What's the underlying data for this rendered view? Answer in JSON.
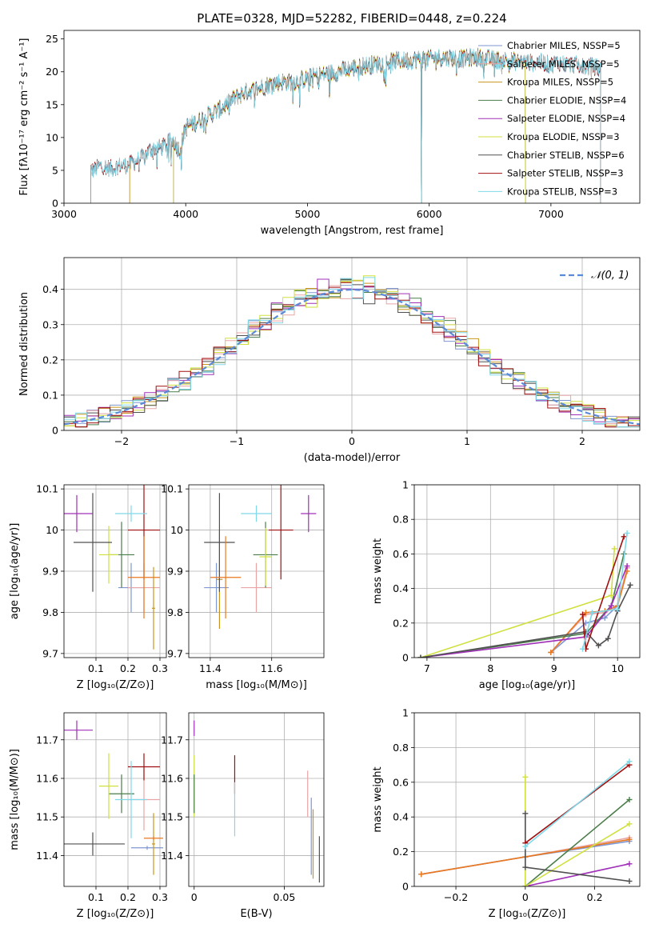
{
  "figure_title": "PLATE=0328, MJD=52282, FIBERID=0448, z=0.224",
  "colors": [
    "#7f96d0",
    "#e8a5a5",
    "#c8961e",
    "#4a7d4a",
    "#a030b8",
    "#d0e040",
    "#505050",
    "#a01010",
    "#80d8e8"
  ],
  "chart_data": [
    {
      "id": "spectrum",
      "type": "line",
      "xlabel": "wavelength [Angstrom, rest frame]",
      "ylabel": "Flux [fλ10⁻¹⁷ erg cm⁻² s⁻¹ A⁻¹]",
      "xlim": [
        3000,
        7730
      ],
      "ylim": [
        0,
        26.3
      ],
      "xticks": [
        3000,
        4000,
        5000,
        6000,
        7000
      ],
      "yticks": [
        0,
        5,
        10,
        15,
        20,
        25
      ],
      "grid": false,
      "legend_position": "top-right",
      "series": [
        {
          "name": "Chabrier MILES, NSSP=5",
          "color": "#7f96d0",
          "x_start": 3540,
          "x_end": 7409
        },
        {
          "name": "Salpeter MILES, NSSP=5",
          "color": "#e8a5a5",
          "x_start": 3540,
          "x_end": 7409
        },
        {
          "name": "Kroupa MILES, NSSP=5",
          "color": "#c8961e",
          "x_start": 3540,
          "x_end": 7409
        },
        {
          "name": "Chabrier ELODIE, NSSP=4",
          "color": "#4a7d4a",
          "x_start": 3900,
          "x_end": 6790
        },
        {
          "name": "Salpeter ELODIE, NSSP=4",
          "color": "#a030b8",
          "x_start": 3900,
          "x_end": 6790
        },
        {
          "name": "Kroupa ELODIE, NSSP=3",
          "color": "#d0e040",
          "x_start": 3900,
          "x_end": 6790
        },
        {
          "name": "Chabrier STELIB, NSSP=6",
          "color": "#505050",
          "x_start": 3220,
          "x_end": 7409
        },
        {
          "name": "Salpeter STELIB, NSSP=3",
          "color": "#a01010",
          "x_start": 3220,
          "x_end": 7409
        },
        {
          "name": "Kroupa STELIB, NSSP=3",
          "color": "#80d8e8",
          "x_start": 3220,
          "x_end": 7409
        }
      ],
      "continuum_points": [
        [
          3220,
          5.0
        ],
        [
          3300,
          5.6
        ],
        [
          3400,
          5.4
        ],
        [
          3500,
          5.8
        ],
        [
          3600,
          6.3
        ],
        [
          3700,
          8.0
        ],
        [
          3800,
          8.6
        ],
        [
          3900,
          9.5
        ],
        [
          3950,
          8.0
        ],
        [
          4000,
          11.5
        ],
        [
          4100,
          12.5
        ],
        [
          4200,
          13.5
        ],
        [
          4300,
          14.5
        ],
        [
          4400,
          16.0
        ],
        [
          4500,
          17.0
        ],
        [
          4600,
          17.5
        ],
        [
          4700,
          18.2
        ],
        [
          4800,
          18.5
        ],
        [
          4900,
          18.5
        ],
        [
          5000,
          19.0
        ],
        [
          5100,
          19.5
        ],
        [
          5200,
          19.8
        ],
        [
          5300,
          20.3
        ],
        [
          5400,
          20.7
        ],
        [
          5500,
          21.0
        ],
        [
          5600,
          21.3
        ],
        [
          5700,
          21.6
        ],
        [
          5800,
          21.7
        ],
        [
          5900,
          21.9
        ],
        [
          6000,
          22.0
        ],
        [
          6100,
          22.2
        ],
        [
          6200,
          22.1
        ],
        [
          6300,
          22.0
        ],
        [
          6400,
          22.2
        ],
        [
          6500,
          21.9
        ],
        [
          6600,
          21.8
        ],
        [
          6700,
          21.6
        ],
        [
          6800,
          21.5
        ],
        [
          6900,
          21.4
        ],
        [
          7000,
          21.2
        ],
        [
          7100,
          21.3
        ],
        [
          7200,
          21.0
        ],
        [
          7300,
          20.8
        ],
        [
          7409,
          20.5
        ]
      ]
    },
    {
      "id": "residuals",
      "type": "histogram",
      "xlabel": "(data-model)/error",
      "ylabel": "Normed distribution",
      "xlim": [
        -2.5,
        2.5
      ],
      "ylim": [
        0,
        0.49
      ],
      "xticks": [
        -2,
        -1,
        0,
        1,
        2
      ],
      "yticks": [
        0.0,
        0.1,
        0.2,
        0.3,
        0.4
      ],
      "grid": true,
      "legend_position": "top-right",
      "reference_line_label": "𝒩(0, 1)",
      "bin_width": 0.1
    },
    {
      "id": "age-vs-Z",
      "type": "errorbar",
      "xlabel": "Z [log₁₀(Z/Z⊙)]",
      "ylabel": "age  [log₁₀(age/yr)]",
      "xlim": [
        0.0,
        0.32
      ],
      "ylim": [
        9.69,
        10.11
      ],
      "xticks": [
        0.1,
        0.2,
        0.3
      ],
      "yticks": [
        9.7,
        9.8,
        9.9,
        10.0,
        10.1
      ],
      "grid": true,
      "points": [
        {
          "color": "#7f96d0",
          "x": 0.21,
          "xerr": 0.04,
          "y": 9.86,
          "yerr": 0.06
        },
        {
          "color": "#e8a5a5",
          "x": 0.25,
          "xerr": 0.05,
          "y": 9.86,
          "yerr": 0.06
        },
        {
          "color": "#c8961e",
          "x": 0.28,
          "xerr": 0.005,
          "y": 9.81,
          "yerr": 0.1
        },
        {
          "color": "#4a7d4a",
          "x": 0.18,
          "xerr": 0.04,
          "y": 9.94,
          "yerr": 0.08
        },
        {
          "color": "#a030b8",
          "x": 0.04,
          "xerr": 0.05,
          "y": 10.04,
          "yerr": 0.045
        },
        {
          "color": "#d0e040",
          "x": 0.14,
          "xerr": 0.03,
          "y": 9.94,
          "yerr": 0.07
        },
        {
          "color": "#505050",
          "x": 0.09,
          "xerr": 0.06,
          "y": 9.97,
          "yerr": 0.12
        },
        {
          "color": "#a01010",
          "x": 0.25,
          "xerr": 0.05,
          "y": 10.0,
          "yerr": 0.12
        },
        {
          "color": "#80d8e8",
          "x": 0.21,
          "xerr": 0.05,
          "y": 10.04,
          "yerr": 0.02
        },
        {
          "color": "#e87820",
          "x": 0.25,
          "xerr": 0.05,
          "y": 9.885,
          "yerr": 0.1
        }
      ]
    },
    {
      "id": "age-vs-mass",
      "type": "errorbar",
      "xlabel": "mass [log₁₀(M/M⊙)]",
      "ylabel": "",
      "xlim": [
        11.33,
        11.77
      ],
      "ylim": [
        9.69,
        10.11
      ],
      "xticks": [
        11.4,
        11.6
      ],
      "yticks": [
        9.7,
        9.8,
        9.9,
        10.0,
        10.1
      ],
      "grid": true,
      "points": [
        {
          "color": "#7f96d0",
          "x": 11.42,
          "xerr": 0.04,
          "y": 9.86,
          "yerr": 0.06
        },
        {
          "color": "#e8a5a5",
          "x": 11.55,
          "xerr": 0.05,
          "y": 9.86,
          "yerr": 0.06
        },
        {
          "color": "#c8961e",
          "x": 11.43,
          "xerr": 0.01,
          "y": 9.88,
          "yerr": 0.12
        },
        {
          "color": "#4a7d4a",
          "x": 11.58,
          "xerr": 0.04,
          "y": 9.94,
          "yerr": 0.08
        },
        {
          "color": "#a030b8",
          "x": 11.72,
          "xerr": 0.025,
          "y": 10.04,
          "yerr": 0.045
        },
        {
          "color": "#d0e040",
          "x": 11.58,
          "xerr": 0.02,
          "y": 9.935,
          "yerr": 0.07
        },
        {
          "color": "#505050",
          "x": 11.43,
          "xerr": 0.05,
          "y": 9.97,
          "yerr": 0.12
        },
        {
          "color": "#a01010",
          "x": 11.63,
          "xerr": 0.04,
          "y": 10.0,
          "yerr": 0.12
        },
        {
          "color": "#80d8e8",
          "x": 11.55,
          "xerr": 0.05,
          "y": 10.04,
          "yerr": 0.02
        },
        {
          "color": "#e87820",
          "x": 11.45,
          "xerr": 0.05,
          "y": 9.885,
          "yerr": 0.1
        }
      ]
    },
    {
      "id": "weight-vs-age",
      "type": "line",
      "xlabel": "age  [log₁₀(age/yr)]",
      "ylabel": "mass weight",
      "xlim": [
        6.8,
        10.35
      ],
      "ylim": [
        0.0,
        1.0
      ],
      "xticks": [
        7,
        8,
        9,
        10
      ],
      "yticks": [
        0.0,
        0.2,
        0.4,
        0.6,
        0.8,
        1.0
      ],
      "grid": true,
      "series": [
        {
          "color": "#7f96d0",
          "points": [
            [
              8.95,
              0.03
            ],
            [
              9.5,
              0.2
            ],
            [
              9.8,
              0.23
            ],
            [
              10.0,
              0.3
            ],
            [
              10.15,
              0.52
            ]
          ]
        },
        {
          "color": "#e8a5a5",
          "points": [
            [
              8.95,
              0.03
            ],
            [
              9.5,
              0.25
            ],
            [
              9.8,
              0.26
            ],
            [
              10.0,
              0.3
            ],
            [
              10.15,
              0.52
            ]
          ]
        },
        {
          "color": "#e87820",
          "points": [
            [
              8.95,
              0.03
            ],
            [
              9.5,
              0.26
            ],
            [
              9.8,
              0.27
            ],
            [
              10.0,
              0.3
            ],
            [
              10.15,
              0.5
            ]
          ]
        },
        {
          "color": "#4a7d4a",
          "points": [
            [
              6.9,
              0.0
            ],
            [
              9.5,
              0.14
            ],
            [
              9.9,
              0.3
            ],
            [
              10.1,
              0.6
            ]
          ]
        },
        {
          "color": "#a030b8",
          "points": [
            [
              6.9,
              0.0
            ],
            [
              9.5,
              0.12
            ],
            [
              9.9,
              0.3
            ],
            [
              10.15,
              0.53
            ]
          ]
        },
        {
          "color": "#d0e040",
          "points": [
            [
              6.9,
              0.0
            ],
            [
              9.9,
              0.36
            ],
            [
              9.95,
              0.63
            ]
          ]
        },
        {
          "color": "#505050",
          "points": [
            [
              6.9,
              0.0
            ],
            [
              9.5,
              0.15
            ],
            [
              9.7,
              0.07
            ],
            [
              9.85,
              0.11
            ],
            [
              10.0,
              0.27
            ],
            [
              10.2,
              0.42
            ]
          ]
        },
        {
          "color": "#a01010",
          "points": [
            [
              9.45,
              0.25
            ],
            [
              9.5,
              0.05
            ],
            [
              10.1,
              0.7
            ]
          ]
        },
        {
          "color": "#80d8e8",
          "points": [
            [
              9.45,
              0.05
            ],
            [
              9.6,
              0.26
            ],
            [
              10.0,
              0.28
            ],
            [
              10.15,
              0.72
            ]
          ]
        }
      ]
    },
    {
      "id": "mass-vs-Z",
      "type": "errorbar",
      "xlabel": "Z [log₁₀(Z/Z⊙)]",
      "ylabel": "mass [log₁₀(M/M⊙)]",
      "xlim": [
        0.0,
        0.32
      ],
      "ylim": [
        11.32,
        11.77
      ],
      "xticks": [
        0.1,
        0.2,
        0.3
      ],
      "yticks": [
        11.4,
        11.5,
        11.6,
        11.7
      ],
      "grid": true,
      "points": [
        {
          "color": "#7f96d0",
          "x": 0.26,
          "xerr": 0.05,
          "y": 11.42,
          "yerr": 0.005
        },
        {
          "color": "#e8a5a5",
          "x": 0.25,
          "xerr": 0.05,
          "y": 11.545,
          "yerr": 0.08
        },
        {
          "color": "#c8961e",
          "x": 0.28,
          "xerr": 0.005,
          "y": 11.43,
          "yerr": 0.08
        },
        {
          "color": "#4a7d4a",
          "x": 0.18,
          "xerr": 0.04,
          "y": 11.56,
          "yerr": 0.05
        },
        {
          "color": "#a030b8",
          "x": 0.04,
          "xerr": 0.05,
          "y": 11.725,
          "yerr": 0.025
        },
        {
          "color": "#d0e040",
          "x": 0.14,
          "xerr": 0.03,
          "y": 11.58,
          "yerr": 0.085
        },
        {
          "color": "#505050",
          "x": 0.09,
          "xerr": 0.1,
          "y": 11.43,
          "yerr": 0.03
        },
        {
          "color": "#a01010",
          "x": 0.25,
          "xerr": 0.05,
          "y": 11.63,
          "yerr": 0.035
        },
        {
          "color": "#80d8e8",
          "x": 0.21,
          "xerr": 0.05,
          "y": 11.545,
          "yerr": 0.1
        },
        {
          "color": "#e87820",
          "x": 0.28,
          "xerr": 0.03,
          "y": 11.445,
          "yerr": 0.005
        }
      ]
    },
    {
      "id": "mass-vs-ebv",
      "type": "errorbar",
      "xlabel": "E(B-V)",
      "ylabel": "",
      "xlim": [
        -0.003,
        0.072
      ],
      "ylim": [
        11.32,
        11.77
      ],
      "xticks": [
        0.0,
        0.05
      ],
      "yticks": [
        11.4,
        11.5,
        11.6,
        11.7
      ],
      "grid": true,
      "points": [
        {
          "color": "#a030b8",
          "x": 0.0,
          "xerr": 0.0,
          "y": 11.73,
          "yerr": 0.02
        },
        {
          "color": "#d0e040",
          "x": 0.0,
          "xerr": 0.0,
          "y": 11.58,
          "yerr": 0.08
        },
        {
          "color": "#4a7d4a",
          "x": 0.0,
          "xerr": 0.0,
          "y": 11.56,
          "yerr": 0.05
        },
        {
          "color": "#a01010",
          "x": 0.0225,
          "xerr": 0.0,
          "y": 11.61,
          "yerr": 0.05
        },
        {
          "color": "#80d8e8",
          "x": 0.0225,
          "xerr": 0.0,
          "y": 11.52,
          "yerr": 0.07
        },
        {
          "color": "#e8a5a5",
          "x": 0.063,
          "xerr": 0.0,
          "y": 11.56,
          "yerr": 0.06
        },
        {
          "color": "#7f96d0",
          "x": 0.065,
          "xerr": 0.0,
          "y": 11.45,
          "yerr": 0.1
        },
        {
          "color": "#c8961e",
          "x": 0.066,
          "xerr": 0.0,
          "y": 11.43,
          "yerr": 0.09
        },
        {
          "color": "#505050",
          "x": 0.0695,
          "xerr": 0.0,
          "y": 11.39,
          "yerr": 0.06
        }
      ]
    },
    {
      "id": "weight-vs-Z",
      "type": "line",
      "xlabel": "Z [log₁₀(Z/Z⊙)]",
      "ylabel": "mass weight",
      "xlim": [
        -0.32,
        0.33
      ],
      "ylim": [
        0.0,
        1.0
      ],
      "xticks": [
        -0.2,
        0.0,
        0.2
      ],
      "yticks": [
        0.0,
        0.2,
        0.4,
        0.6,
        0.8,
        1.0
      ],
      "grid": true,
      "series": [
        {
          "color": "#7f96d0",
          "points": [
            [
              -0.3,
              0.07
            ],
            [
              0.0,
              0.17
            ],
            [
              0.3,
              0.26
            ]
          ]
        },
        {
          "color": "#e8a5a5",
          "points": [
            [
              -0.3,
              0.07
            ],
            [
              0.0,
              0.17
            ],
            [
              0.3,
              0.28
            ]
          ]
        },
        {
          "color": "#e87820",
          "points": [
            [
              -0.3,
              0.07
            ],
            [
              0.0,
              0.17
            ],
            [
              0.3,
              0.27
            ]
          ]
        },
        {
          "color": "#4a7d4a",
          "points": [
            [
              0.0,
              0.0
            ],
            [
              0.3,
              0.5
            ]
          ]
        },
        {
          "color": "#a030b8",
          "points": [
            [
              0.0,
              0.0
            ],
            [
              0.3,
              0.13
            ]
          ]
        },
        {
          "color": "#d0e040",
          "points": [
            [
              0.0,
              0.63
            ],
            [
              0.0,
              0.0
            ],
            [
              0.3,
              0.36
            ]
          ]
        },
        {
          "color": "#505050",
          "points": [
            [
              0.0,
              0.42
            ],
            [
              0.0,
              0.11
            ],
            [
              0.3,
              0.03
            ]
          ]
        },
        {
          "color": "#a01010",
          "points": [
            [
              0.0,
              0.25
            ],
            [
              0.3,
              0.7
            ]
          ]
        },
        {
          "color": "#80d8e8",
          "points": [
            [
              0.0,
              0.23
            ],
            [
              0.3,
              0.72
            ]
          ]
        }
      ]
    }
  ]
}
